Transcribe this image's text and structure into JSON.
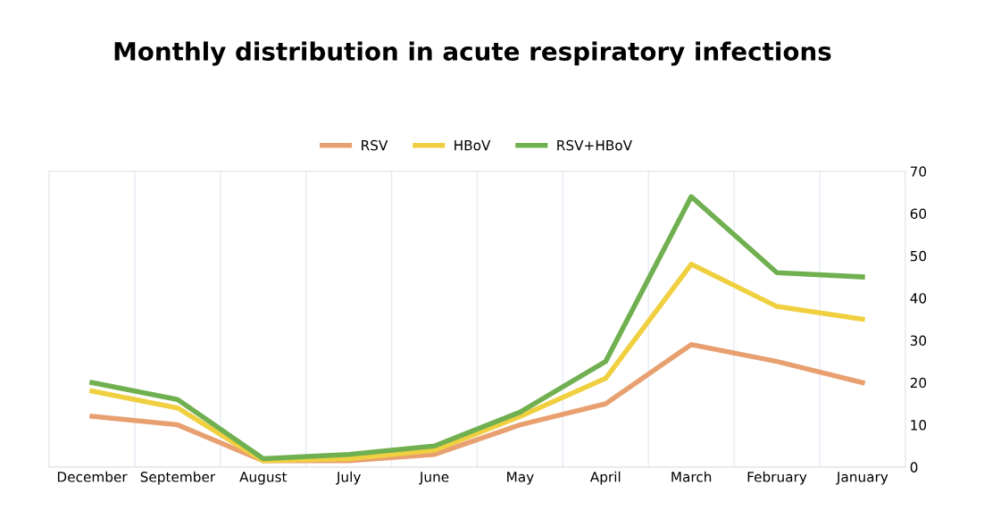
{
  "chart_data": {
    "type": "line",
    "title": "Monthly distribution in acute respiratory infections",
    "categories": [
      "December",
      "September",
      "August",
      "July",
      "June",
      "May",
      "April",
      "March",
      "February",
      "January"
    ],
    "series": [
      {
        "name": "RSV",
        "color": "#e8a070",
        "values": [
          12,
          10,
          1.5,
          1.5,
          3,
          10,
          15,
          29,
          25,
          20
        ]
      },
      {
        "name": "HBoV",
        "color": "#f0d040",
        "values": [
          18,
          14,
          1.5,
          2,
          4,
          12,
          21,
          48,
          38,
          35
        ]
      },
      {
        "name": "RSV+HBoV",
        "color": "#70b050",
        "values": [
          20,
          16,
          2,
          3,
          5,
          13,
          25,
          64,
          46,
          45
        ]
      }
    ],
    "ylim": [
      0,
      70
    ],
    "yticks": [
      0,
      10,
      20,
      30,
      40,
      50,
      60,
      70
    ],
    "grid": "x",
    "legend": "top",
    "marker": "none",
    "line_style": "solid"
  }
}
